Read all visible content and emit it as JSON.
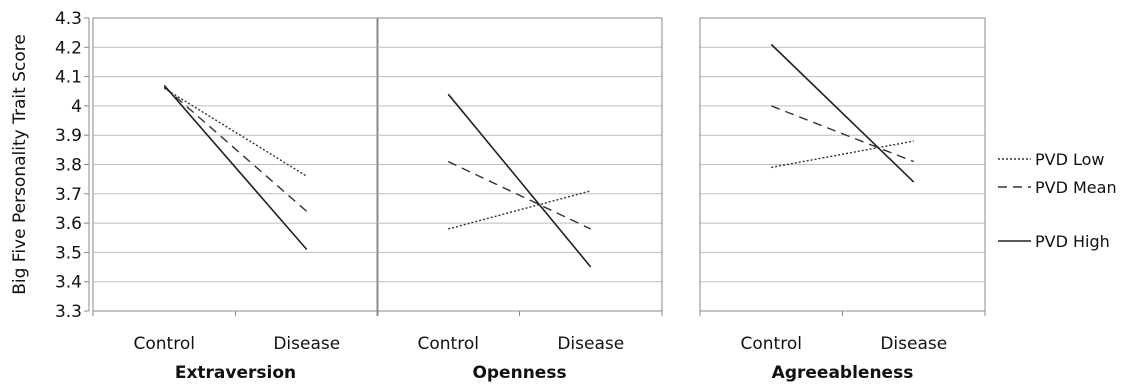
{
  "chart_data": {
    "type": "line",
    "ylabel": "Big Five Personality Trait Score",
    "ylim": [
      3.3,
      4.3
    ],
    "yticks": [
      "3.3",
      "3.4",
      "3.5",
      "3.6",
      "3.7",
      "3.8",
      "3.9",
      "4",
      "4.1",
      "4.2",
      "4.3"
    ],
    "categories": [
      "Control",
      "Disease"
    ],
    "grid": true,
    "legend": "right",
    "series_styles": [
      {
        "name": "PVD Low",
        "dash": "dotted",
        "color": "#333333"
      },
      {
        "name": "PVD Mean",
        "dash": "dashed",
        "color": "#333333"
      },
      {
        "name": "PVD High",
        "dash": "solid",
        "color": "#222222"
      }
    ],
    "panels": [
      {
        "title": "Extraversion",
        "series": [
          {
            "name": "PVD Low",
            "values": [
              4.06,
              3.76
            ]
          },
          {
            "name": "PVD Mean",
            "values": [
              4.065,
              3.64
            ]
          },
          {
            "name": "PVD High",
            "values": [
              4.07,
              3.51
            ]
          }
        ]
      },
      {
        "title": "Openness",
        "series": [
          {
            "name": "PVD Low",
            "values": [
              3.58,
              3.71
            ]
          },
          {
            "name": "PVD Mean",
            "values": [
              3.81,
              3.58
            ]
          },
          {
            "name": "PVD High",
            "values": [
              4.04,
              3.45
            ]
          }
        ]
      },
      {
        "title": "Agreeableness",
        "series": [
          {
            "name": "PVD Low",
            "values": [
              3.79,
              3.88
            ]
          },
          {
            "name": "PVD Mean",
            "values": [
              4.0,
              3.81
            ]
          },
          {
            "name": "PVD High",
            "values": [
              4.21,
              3.74
            ]
          }
        ]
      }
    ]
  }
}
